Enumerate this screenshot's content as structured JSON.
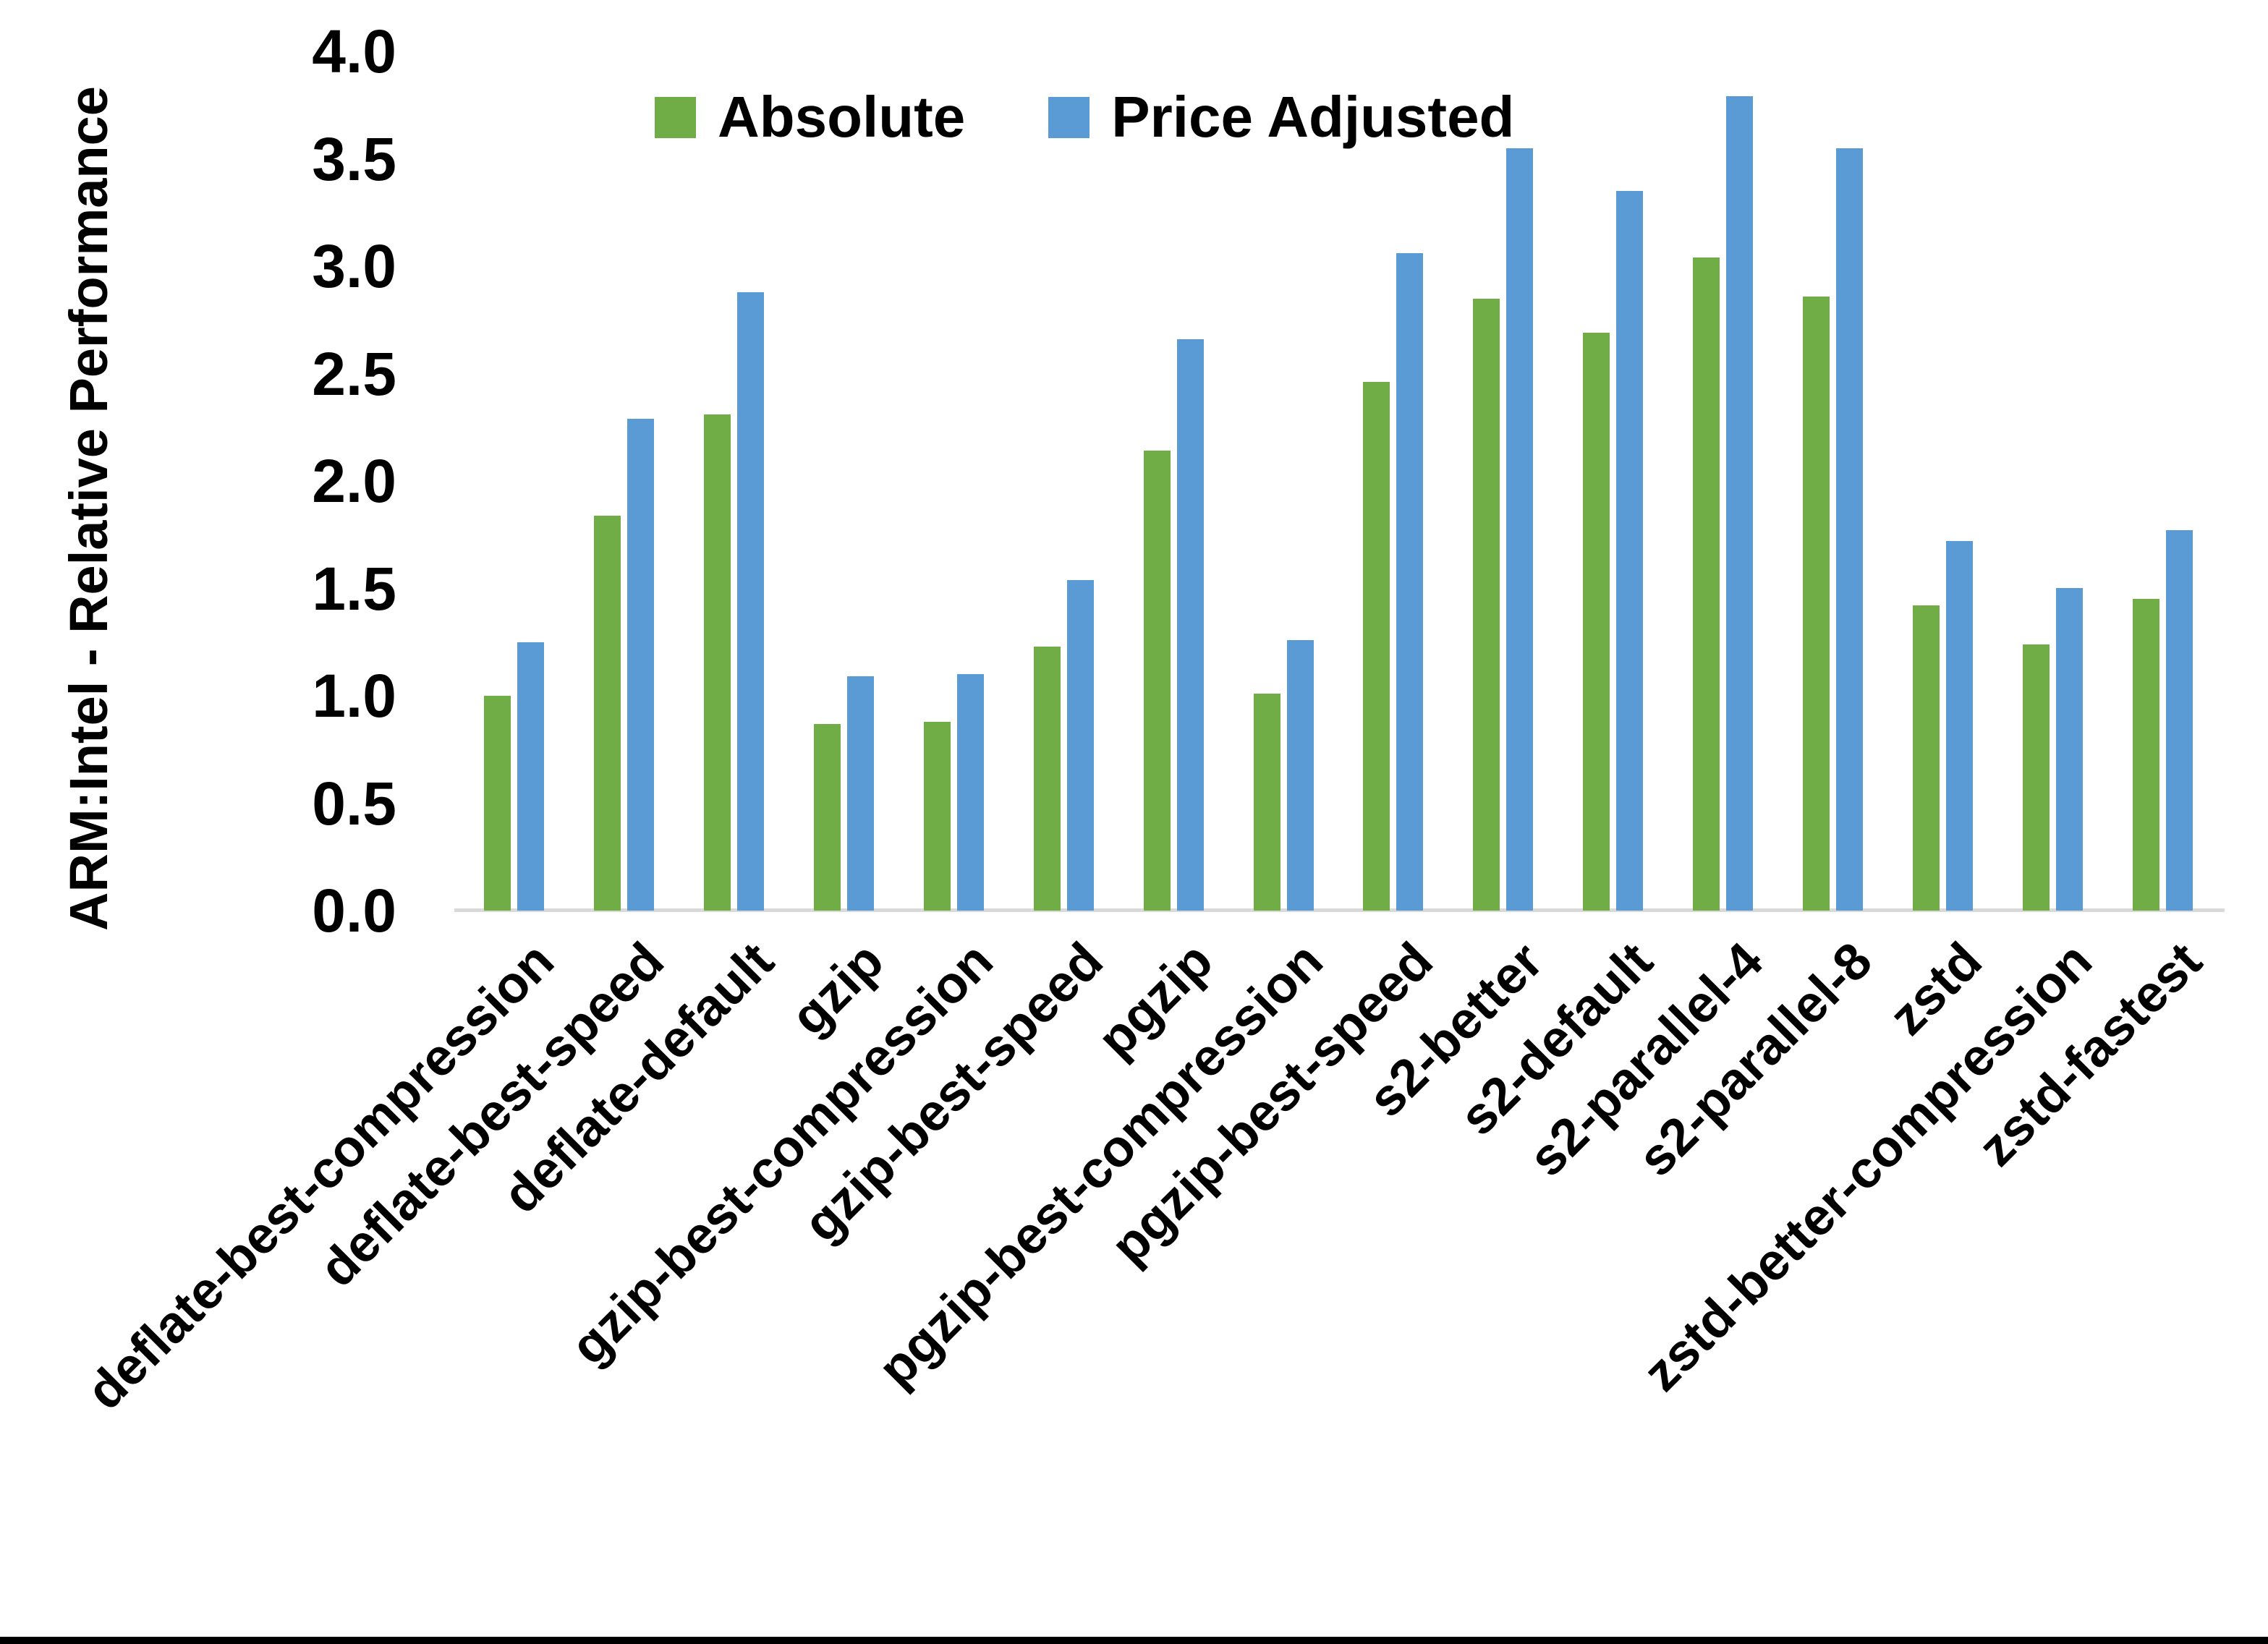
{
  "chart_data": {
    "type": "bar",
    "title": "",
    "xlabel": "",
    "ylabel": "ARM:Intel - Relative Performance",
    "ylim": [
      0.0,
      4.0
    ],
    "ytick_step": 0.5,
    "yticks": [
      "0.0",
      "0.5",
      "1.0",
      "1.5",
      "2.0",
      "2.5",
      "3.0",
      "3.5",
      "4.0"
    ],
    "grid": false,
    "legend_position": "top-center",
    "categories": [
      "deflate-best-compression",
      "deflate-best-speed",
      "deflate-default",
      "gzip",
      "gzip-best-compression",
      "gzip-best-speed",
      "pgzip",
      "pgzip-best-compression",
      "pgzip-best-speed",
      "s2-better",
      "s2-default",
      "s2-parallel-4",
      "s2-parallel-8",
      "zstd",
      "zstd-better-compression",
      "zstd-fastest"
    ],
    "series": [
      {
        "name": "Absolute",
        "color": "#70AD47",
        "values": [
          1.0,
          1.84,
          2.31,
          0.87,
          0.88,
          1.23,
          2.14,
          1.01,
          2.46,
          2.85,
          2.69,
          3.04,
          2.86,
          1.42,
          1.24,
          1.45
        ]
      },
      {
        "name": "Price Adjusted",
        "color": "#5B9BD5",
        "values": [
          1.25,
          2.29,
          2.88,
          1.09,
          1.1,
          1.54,
          2.66,
          1.26,
          3.06,
          3.55,
          3.35,
          3.79,
          3.55,
          1.72,
          1.5,
          1.77
        ]
      }
    ],
    "axis_line_color": "#D9D9D9",
    "text_color": "#000000",
    "background": "#FFFFFF"
  }
}
